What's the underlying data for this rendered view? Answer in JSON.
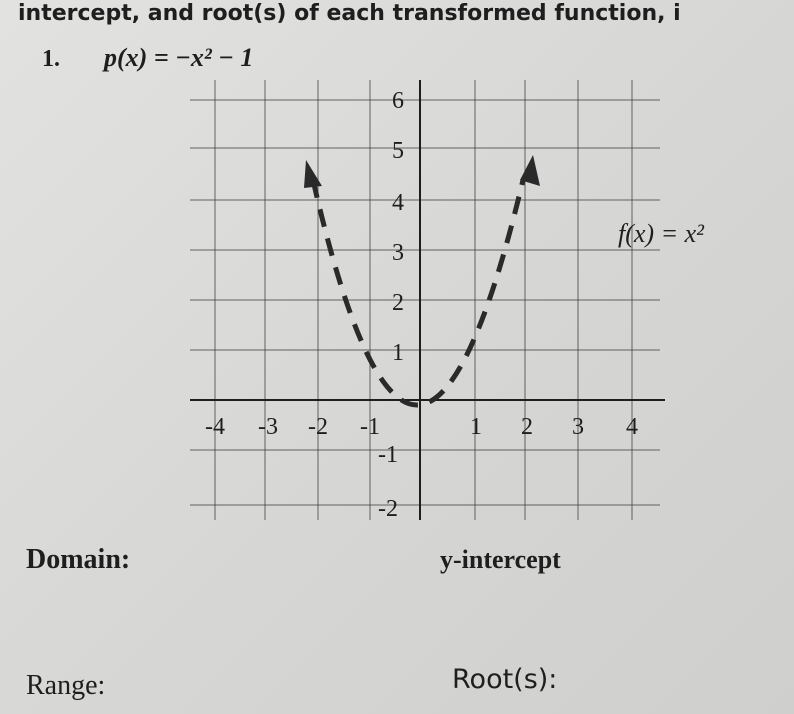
{
  "header": {
    "text": "intercept, and root(s) of each transformed function, i"
  },
  "problem": {
    "number": "1.",
    "function": "p(x) = −x² − 1"
  },
  "graph": {
    "y_labels": [
      "6",
      "5",
      "4",
      "3",
      "2",
      "1",
      "-1",
      "-2"
    ],
    "x_labels": [
      "-4",
      "-3",
      "-2",
      "-1",
      "1",
      "2",
      "3",
      "4"
    ],
    "curve_label": "f(x) = x²"
  },
  "answers": {
    "domain": "Domain:",
    "y_intercept": "y-intercept",
    "range": "Range:",
    "roots": "Root(s):"
  }
}
